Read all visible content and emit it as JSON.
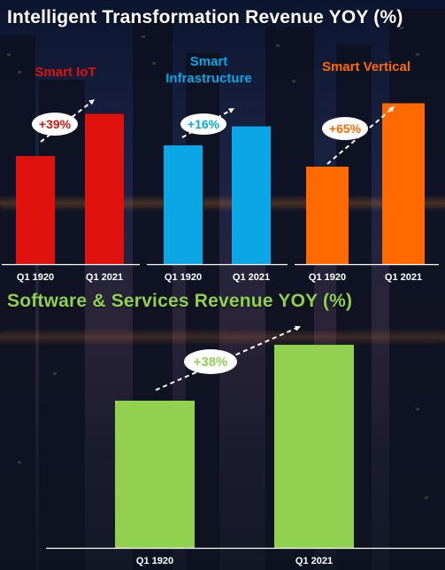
{
  "title_top": "Intelligent Transformation Revenue YOY (%)",
  "title_bottom": "Software & Services Revenue YOY (%)",
  "colors": {
    "iot": "#e0120e",
    "infra": "#0aa6e6",
    "vertical": "#ff6a00",
    "software": "#92d050",
    "software_title": "#8fd14f",
    "axis": "#ffffff"
  },
  "chart_data": [
    {
      "type": "bar",
      "title": "Smart IoT",
      "categories": [
        "Q1 1920",
        "Q1 2021"
      ],
      "values": [
        100,
        139
      ],
      "growth_label": "+39%",
      "color": "#e0120e"
    },
    {
      "type": "bar",
      "title": "Smart Infrastructure",
      "categories": [
        "Q1 1920",
        "Q1 2021"
      ],
      "values": [
        100,
        116
      ],
      "growth_label": "+16%",
      "color": "#0aa6e6"
    },
    {
      "type": "bar",
      "title": "Smart Vertical",
      "categories": [
        "Q1 1920",
        "Q1 2021"
      ],
      "values": [
        100,
        165
      ],
      "growth_label": "+65%",
      "color": "#ff6a00"
    },
    {
      "type": "bar",
      "title": "Software & Services Revenue YOY (%)",
      "categories": [
        "Q1 1920",
        "Q1 2021"
      ],
      "values": [
        100,
        138
      ],
      "growth_label": "+38%",
      "color": "#92d050"
    }
  ]
}
